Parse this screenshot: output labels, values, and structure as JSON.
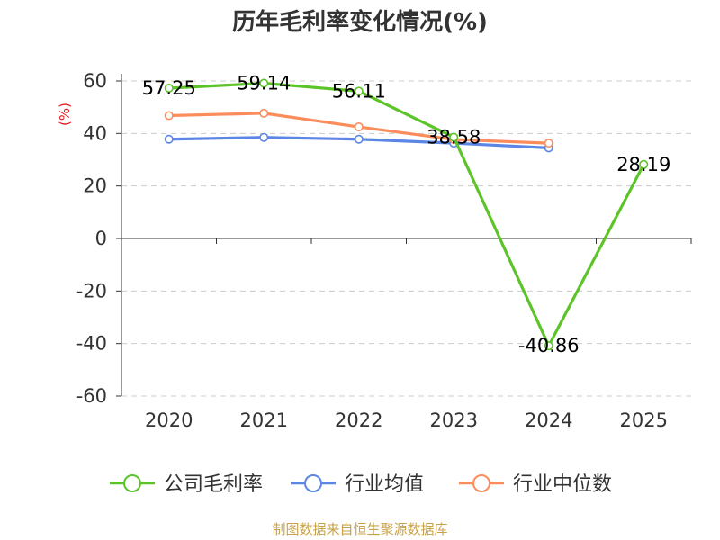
{
  "source_text": "制图数据来自恒生聚源数据库",
  "chart_data": {
    "type": "line",
    "title": "历年毛利率变化情况(%)",
    "ylabel": "(%)",
    "xlabel": "",
    "categories": [
      "2020",
      "2021",
      "2022",
      "2023",
      "2024",
      "2025"
    ],
    "ylim": [
      -60,
      60
    ],
    "yticks": [
      "60",
      "40",
      "20",
      "0",
      "-20",
      "-40",
      "-60"
    ],
    "ytick_values": [
      60,
      40,
      20,
      0,
      -20,
      -40,
      -60
    ],
    "grid": true,
    "legend_position": "bottom",
    "series": [
      {
        "name": "公司毛利率",
        "color": "#5cc428",
        "values": [
          57.25,
          59.14,
          56.11,
          38.58,
          -40.86,
          28.19
        ],
        "labels": [
          "57.25",
          "59.14",
          "56.11",
          "38.58",
          "-40.86",
          "28.19"
        ]
      },
      {
        "name": "行业均值",
        "color": "#5b86e5",
        "values": [
          37.8,
          38.5,
          37.8,
          36.3,
          34.5,
          null
        ]
      },
      {
        "name": "行业中位数",
        "color": "#fb8c5c",
        "values": [
          46.8,
          47.7,
          42.5,
          37.7,
          36.3,
          null
        ]
      }
    ]
  }
}
